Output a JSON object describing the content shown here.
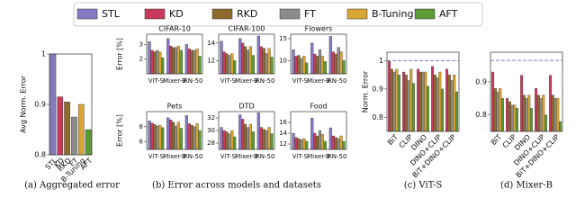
{
  "legend": [
    {
      "name": "STL",
      "color": "#8479c2"
    },
    {
      "name": "KD",
      "color": "#c63a5c"
    },
    {
      "name": "RKD",
      "color": "#8e6a2c"
    },
    {
      "name": "FT",
      "color": "#8c8c8c"
    },
    {
      "name": "B-Tuning",
      "color": "#d9a534"
    },
    {
      "name": "AFT",
      "color": "#5b9a36"
    }
  ],
  "captions": [
    "(a) Aggregated error",
    "(b) Error across models and datasets",
    "(c) ViT-S",
    "(d) Mixer-B"
  ],
  "chart_data": [
    {
      "type": "bar",
      "ylabel": "Avg Norm. Error",
      "categories": [
        "STL",
        "KD",
        "RKD",
        "FT",
        "B-Tuning",
        "AFT"
      ],
      "values": [
        1.0,
        0.915,
        0.905,
        0.875,
        0.9,
        0.85
      ],
      "colors": [
        "#8479c2",
        "#c63a5c",
        "#8e6a2c",
        "#8c8c8c",
        "#d9a534",
        "#5b9a36"
      ],
      "ylim": [
        0.8,
        1.0
      ],
      "yticks": [
        0.8,
        0.9,
        1.0
      ]
    },
    {
      "type": "grouped_bar",
      "title": "CIFAR-10",
      "ylabel": "Error [%]",
      "categories": [
        "ViT-S",
        "Mixer-B",
        "RN-50"
      ],
      "series": [
        {
          "color": "#8479c2",
          "values": [
            3.2,
            3.4,
            3.0
          ]
        },
        {
          "color": "#c63a5c",
          "values": [
            2.6,
            2.9,
            2.7
          ]
        },
        {
          "color": "#8e6a2c",
          "values": [
            2.5,
            2.8,
            2.6
          ]
        },
        {
          "color": "#8c8c8c",
          "values": [
            2.6,
            2.8,
            2.6
          ]
        },
        {
          "color": "#d9a534",
          "values": [
            2.5,
            2.9,
            2.7
          ]
        },
        {
          "color": "#5b9a36",
          "values": [
            2.1,
            2.6,
            2.2
          ]
        }
      ],
      "ylim": [
        1.0,
        3.7
      ],
      "yticks": [
        2,
        3
      ]
    },
    {
      "type": "grouped_bar",
      "title": "CIFAR-100",
      "categories": [
        "ViT-S",
        "Mixer-B",
        "RN-50"
      ],
      "series": [
        {
          "color": "#8479c2",
          "values": [
            14.2,
            14.5,
            14.8
          ]
        },
        {
          "color": "#c63a5c",
          "values": [
            13.0,
            14.0,
            13.6
          ]
        },
        {
          "color": "#8e6a2c",
          "values": [
            12.8,
            13.6,
            13.4
          ]
        },
        {
          "color": "#8c8c8c",
          "values": [
            12.6,
            13.2,
            12.8
          ]
        },
        {
          "color": "#d9a534",
          "values": [
            12.8,
            13.6,
            13.4
          ]
        },
        {
          "color": "#5b9a36",
          "values": [
            12.0,
            12.6,
            12.4
          ]
        }
      ],
      "ylim": [
        10.5,
        15.0
      ],
      "yticks": [
        12,
        14
      ]
    },
    {
      "type": "grouped_bar",
      "title": "Flowers",
      "categories": [
        "ViT-S",
        "Mixer-B",
        "RN-50"
      ],
      "series": [
        {
          "color": "#8479c2",
          "values": [
            12.5,
            14.0,
            15.5
          ]
        },
        {
          "color": "#c63a5c",
          "values": [
            11.0,
            11.5,
            12.0
          ]
        },
        {
          "color": "#8e6a2c",
          "values": [
            11.2,
            11.0,
            11.5
          ]
        },
        {
          "color": "#8c8c8c",
          "values": [
            10.5,
            12.5,
            13.0
          ]
        },
        {
          "color": "#d9a534",
          "values": [
            11.0,
            11.0,
            12.0
          ]
        },
        {
          "color": "#5b9a36",
          "values": [
            9.5,
            9.8,
            10.0
          ]
        }
      ],
      "ylim": [
        7,
        16
      ],
      "yticks": [
        10,
        15
      ]
    },
    {
      "type": "grouped_bar",
      "title": "Pets",
      "ylabel": "Error [%]",
      "categories": [
        "ViT-S",
        "Mixer-B",
        "RN-50"
      ],
      "series": [
        {
          "color": "#8479c2",
          "values": [
            8.8,
            9.2,
            9.5
          ]
        },
        {
          "color": "#c63a5c",
          "values": [
            8.5,
            8.9,
            8.4
          ]
        },
        {
          "color": "#8e6a2c",
          "values": [
            8.3,
            8.6,
            8.2
          ]
        },
        {
          "color": "#8c8c8c",
          "values": [
            8.1,
            8.1,
            8.0
          ]
        },
        {
          "color": "#d9a534",
          "values": [
            8.2,
            8.6,
            8.4
          ]
        },
        {
          "color": "#5b9a36",
          "values": [
            7.9,
            7.8,
            7.5
          ]
        }
      ],
      "ylim": [
        5,
        10
      ],
      "yticks": [
        6,
        8
      ]
    },
    {
      "type": "grouped_bar",
      "title": "DTD",
      "categories": [
        "ViT-S",
        "Mixer-B",
        "RN-50"
      ],
      "series": [
        {
          "color": "#8479c2",
          "values": [
            30.5,
            32.5,
            32.8
          ]
        },
        {
          "color": "#c63a5c",
          "values": [
            30.0,
            31.8,
            30.5
          ]
        },
        {
          "color": "#8e6a2c",
          "values": [
            29.8,
            31.0,
            30.2
          ]
        },
        {
          "color": "#8c8c8c",
          "values": [
            29.5,
            30.5,
            30.0
          ]
        },
        {
          "color": "#d9a534",
          "values": [
            30.0,
            31.0,
            30.5
          ]
        },
        {
          "color": "#5b9a36",
          "values": [
            29.0,
            29.8,
            29.5
          ]
        }
      ],
      "ylim": [
        27,
        33
      ],
      "yticks": [
        28,
        30,
        32
      ]
    },
    {
      "type": "grouped_bar",
      "title": "Food",
      "categories": [
        "ViT-S",
        "Mixer-B",
        "RN-50"
      ],
      "series": [
        {
          "color": "#8479c2",
          "values": [
            14.0,
            16.8,
            15.0
          ]
        },
        {
          "color": "#c63a5c",
          "values": [
            13.2,
            14.0,
            13.5
          ]
        },
        {
          "color": "#8e6a2c",
          "values": [
            13.0,
            13.5,
            13.2
          ]
        },
        {
          "color": "#8c8c8c",
          "values": [
            12.8,
            14.5,
            13.0
          ]
        },
        {
          "color": "#d9a534",
          "values": [
            13.0,
            13.8,
            13.5
          ]
        },
        {
          "color": "#5b9a36",
          "values": [
            12.5,
            12.5,
            12.5
          ]
        }
      ],
      "ylim": [
        11,
        18
      ],
      "yticks": [
        12,
        14,
        16
      ]
    },
    {
      "type": "grouped_bar",
      "ylabel": "Norm. Error",
      "categories": [
        "BiT",
        "CLIP",
        "DINO",
        "DINO+CLIP",
        "BiT+DINO+CLIP"
      ],
      "rotate_labels": true,
      "reference": 1.0,
      "reference_color": "#8479c2",
      "series": [
        {
          "color": "#c63a5c",
          "values": [
            1.0,
            0.96,
            0.97,
            0.98,
            0.97
          ]
        },
        {
          "color": "#8e6a2c",
          "values": [
            0.97,
            0.95,
            0.96,
            0.95,
            0.95
          ]
        },
        {
          "color": "#8c8c8c",
          "values": [
            0.96,
            0.93,
            0.96,
            0.94,
            0.93
          ]
        },
        {
          "color": "#d9a534",
          "values": [
            0.97,
            0.97,
            0.96,
            0.96,
            0.95
          ]
        },
        {
          "color": "#5b9a36",
          "values": [
            0.95,
            0.92,
            0.91,
            0.9,
            0.89
          ]
        }
      ],
      "ylim": [
        0.75,
        1.03
      ],
      "yticks": [
        0.8,
        0.9,
        1.0
      ]
    },
    {
      "type": "grouped_bar",
      "categories": [
        "BiT",
        "CLIP",
        "DINO",
        "DINO+CLIP",
        "BiT+DINO+CLIP"
      ],
      "rotate_labels": true,
      "reference": 0.965,
      "reference_color": "#8479c2",
      "series": [
        {
          "color": "#c63a5c",
          "values": [
            0.93,
            0.85,
            0.92,
            0.88,
            0.92
          ]
        },
        {
          "color": "#8e6a2c",
          "values": [
            0.88,
            0.84,
            0.86,
            0.86,
            0.86
          ]
        },
        {
          "color": "#8c8c8c",
          "values": [
            0.87,
            0.83,
            0.85,
            0.85,
            0.85
          ]
        },
        {
          "color": "#d9a534",
          "values": [
            0.88,
            0.83,
            0.86,
            0.86,
            0.85
          ]
        },
        {
          "color": "#5b9a36",
          "values": [
            0.85,
            0.82,
            0.82,
            0.8,
            0.78
          ]
        }
      ],
      "ylim": [
        0.75,
        0.99
      ],
      "yticks": [
        0.8,
        0.9
      ]
    }
  ]
}
